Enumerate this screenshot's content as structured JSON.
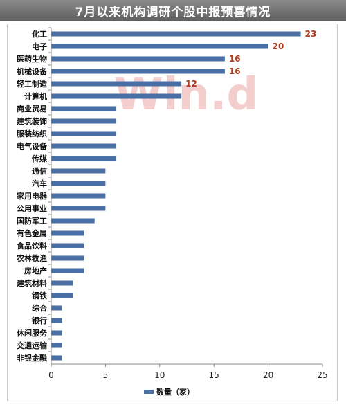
{
  "header": {
    "title": "7月以来机构调研个股中报预喜情况"
  },
  "watermark": "Win.d",
  "colors": {
    "bar": "#4a6fa5",
    "label": "#b03a1a",
    "header": "#6b6b6b"
  },
  "chart_data": {
    "type": "bar",
    "orientation": "horizontal",
    "title": "7月以来机构调研个股中报预喜情况",
    "categories": [
      "化工",
      "电子",
      "医药生物",
      "机械设备",
      "轻工制造",
      "计算机",
      "商业贸易",
      "建筑装饰",
      "服装纺织",
      "电气设备",
      "传媒",
      "通信",
      "汽车",
      "家用电器",
      "公用事业",
      "国防军工",
      "有色金属",
      "食品饮料",
      "农林牧渔",
      "房地产",
      "建筑材料",
      "钢铁",
      "综合",
      "银行",
      "休闲服务",
      "交通运输",
      "非银金融"
    ],
    "series": [
      {
        "name": "数量（家）",
        "values": [
          23,
          20,
          16,
          16,
          12,
          12,
          6,
          6,
          6,
          6,
          6,
          5,
          5,
          5,
          5,
          4,
          3,
          3,
          3,
          3,
          2,
          2,
          1,
          1,
          1,
          1,
          1
        ]
      }
    ],
    "data_labels": {
      "化工": "23",
      "电子": "20",
      "医药生物": "16",
      "机械设备": "16",
      "轻工制造": "12"
    },
    "xlim": [
      0,
      25
    ],
    "x_ticks": [
      "0",
      "5",
      "10",
      "15",
      "20",
      "25"
    ],
    "xlabel": "",
    "ylabel": "",
    "grid": false,
    "legend": "bottom"
  }
}
